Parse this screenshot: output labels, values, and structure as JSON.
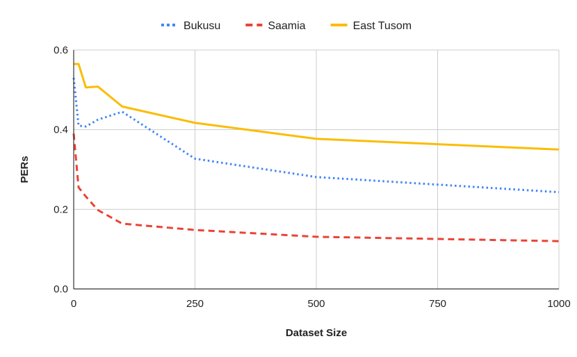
{
  "chart_data": {
    "type": "line",
    "xlabel": "Dataset Size",
    "ylabel": "PERs",
    "xlim": [
      0,
      1000
    ],
    "ylim": [
      0,
      0.6
    ],
    "x_ticks": [
      0,
      250,
      500,
      750,
      1000
    ],
    "y_ticks": [
      0.0,
      0.2,
      0.4,
      0.6
    ],
    "x_tick_labels": [
      "0",
      "250",
      "500",
      "750",
      "1000"
    ],
    "y_tick_labels": [
      "0.0",
      "0.2",
      "0.4",
      "0.6"
    ],
    "grid": true,
    "legend_position": "top-center",
    "series": [
      {
        "name": "Bukusu",
        "color": "#4285F4",
        "line_style": "dotted",
        "x": [
          0,
          10,
          25,
          50,
          100,
          250,
          500,
          1000
        ],
        "y": [
          0.53,
          0.41,
          0.408,
          0.425,
          0.445,
          0.327,
          0.281,
          0.243
        ]
      },
      {
        "name": "Saamia",
        "color": "#EA4335",
        "line_style": "dashed",
        "x": [
          0,
          10,
          25,
          50,
          100,
          250,
          500,
          1000
        ],
        "y": [
          0.39,
          0.255,
          0.232,
          0.198,
          0.164,
          0.148,
          0.131,
          0.12
        ]
      },
      {
        "name": "East Tusom",
        "color": "#FBBC04",
        "line_style": "solid",
        "x": [
          0,
          10,
          25,
          50,
          100,
          250,
          500,
          1000
        ],
        "y": [
          0.565,
          0.565,
          0.506,
          0.508,
          0.458,
          0.417,
          0.377,
          0.35
        ]
      }
    ]
  }
}
